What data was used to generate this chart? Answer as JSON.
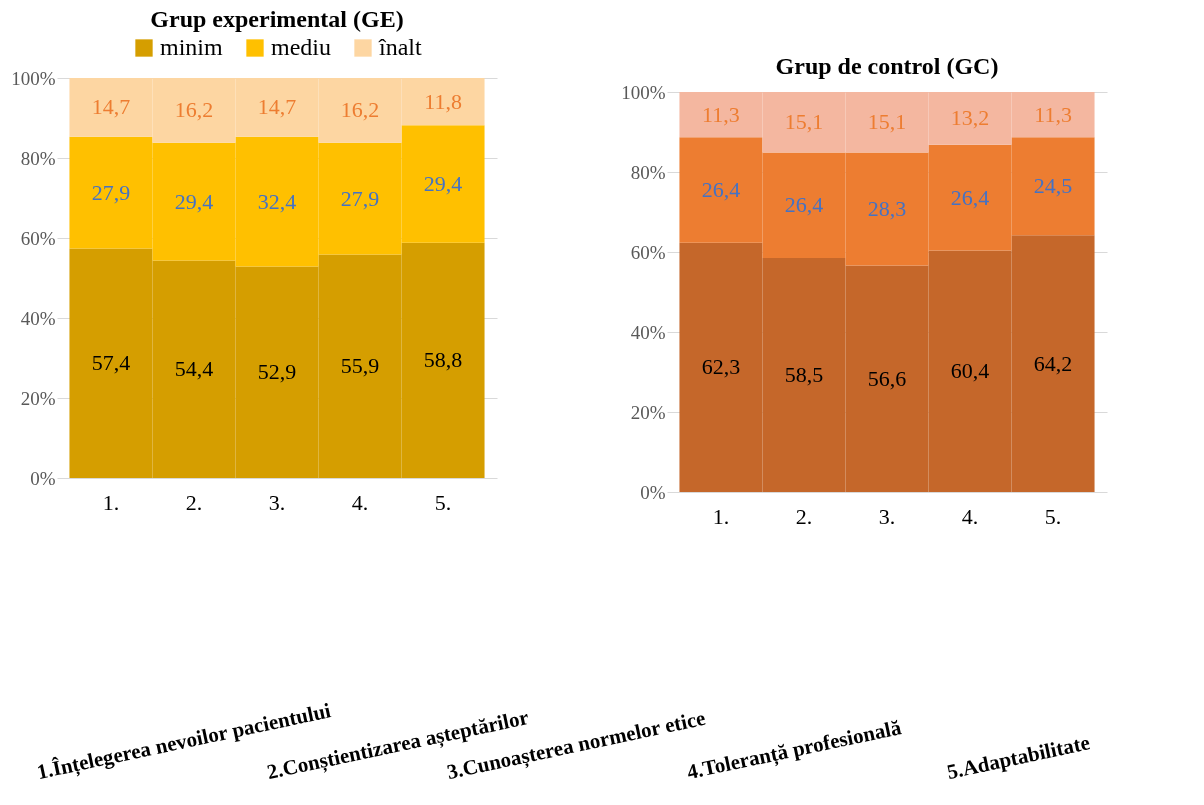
{
  "chart_data": [
    {
      "type": "bar",
      "title": "Grup experimental (GE)",
      "stacked": true,
      "categories": [
        "1.",
        "2.",
        "3.",
        "4.",
        "5."
      ],
      "series": [
        {
          "name": "minim",
          "color": "#d59e00",
          "values": [
            57.4,
            54.4,
            52.9,
            55.9,
            58.8
          ],
          "value_labels": [
            "57,4",
            "54,4",
            "52,9",
            "55,9",
            "58,8"
          ]
        },
        {
          "name": "mediu",
          "color": "#ffc000",
          "values": [
            27.9,
            29.4,
            32.4,
            27.9,
            29.4
          ],
          "value_labels": [
            "27,9",
            "29,4",
            "32,4",
            "27,9",
            "29,4"
          ]
        },
        {
          "name": "înalt",
          "color": "#fdd6a2",
          "values": [
            14.7,
            16.2,
            14.7,
            16.2,
            11.8
          ],
          "value_labels": [
            "14,7",
            "16,2",
            "14,7",
            "16,2",
            "11,8"
          ]
        }
      ],
      "ylim": [
        0,
        100
      ],
      "yticks": [
        {
          "value": 0,
          "label": "0%"
        },
        {
          "value": 20,
          "label": "20%"
        },
        {
          "value": 40,
          "label": "40%"
        },
        {
          "value": 60,
          "label": "60%"
        },
        {
          "value": 80,
          "label": "80%"
        },
        {
          "value": 100,
          "label": "100%"
        }
      ],
      "grid": "y",
      "legend": "top",
      "annotations": [
        "1.Înțelegerea nevoilor pacientului",
        "2.Conștientizarea așteptărilor",
        "3.Cunoașterea normelor etice",
        "4.Toleranță profesională",
        "5.Adaptabilitate"
      ]
    },
    {
      "type": "bar",
      "title": "Grup de control (GC)",
      "stacked": true,
      "categories": [
        "1.",
        "2.",
        "3.",
        "4.",
        "5."
      ],
      "series": [
        {
          "color": "#c5672a",
          "values": [
            62.3,
            58.5,
            56.6,
            60.4,
            64.2
          ],
          "value_labels": [
            "62,3",
            "58,5",
            "56,6",
            "60,4",
            "64,2"
          ]
        },
        {
          "color": "#ed7d31",
          "values": [
            26.4,
            26.4,
            28.3,
            26.4,
            24.5
          ],
          "value_labels": [
            "26,4",
            "26,4",
            "28,3",
            "26,4",
            "24,5"
          ]
        },
        {
          "color": "#f4b7a0",
          "values": [
            11.3,
            15.1,
            15.1,
            13.2,
            11.3
          ],
          "value_labels": [
            "11,3",
            "15,1",
            "15,1",
            "13,2",
            "11,3"
          ]
        }
      ],
      "ylim": [
        0,
        100
      ],
      "yticks": [
        {
          "value": 0,
          "label": "0%"
        },
        {
          "value": 20,
          "label": "20%"
        },
        {
          "value": 40,
          "label": "40%"
        },
        {
          "value": 60,
          "label": "60%"
        },
        {
          "value": 80,
          "label": "80%"
        },
        {
          "value": 100,
          "label": "100%"
        }
      ],
      "grid": "y"
    }
  ]
}
